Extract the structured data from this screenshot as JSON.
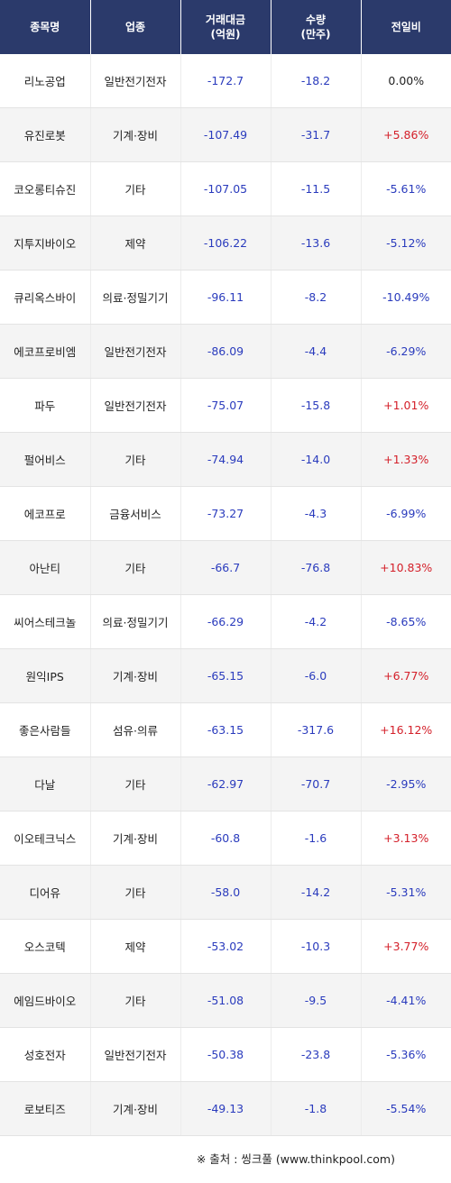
{
  "header": {
    "col1": "종목명",
    "col2": "업종",
    "col3_line1": "거래대금",
    "col3_line2": "(억원)",
    "col4_line1": "수량",
    "col4_line2": "(만주)",
    "col5": "전일비"
  },
  "rows": [
    {
      "name": "리노공업",
      "sector": "일반전기전자",
      "amount": "-172.7",
      "volume": "-18.2",
      "change": "0.00%",
      "change_color": "black"
    },
    {
      "name": "유진로봇",
      "sector": "기계·장비",
      "amount": "-107.49",
      "volume": "-31.7",
      "change": "+5.86%",
      "change_color": "red"
    },
    {
      "name": "코오롱티슈진",
      "sector": "기타",
      "amount": "-107.05",
      "volume": "-11.5",
      "change": "-5.61%",
      "change_color": "blue"
    },
    {
      "name": "지투지바이오",
      "sector": "제약",
      "amount": "-106.22",
      "volume": "-13.6",
      "change": "-5.12%",
      "change_color": "blue"
    },
    {
      "name": "큐리옥스바이",
      "sector": "의료·정밀기기",
      "amount": "-96.11",
      "volume": "-8.2",
      "change": "-10.49%",
      "change_color": "blue"
    },
    {
      "name": "에코프로비엠",
      "sector": "일반전기전자",
      "amount": "-86.09",
      "volume": "-4.4",
      "change": "-6.29%",
      "change_color": "blue"
    },
    {
      "name": "파두",
      "sector": "일반전기전자",
      "amount": "-75.07",
      "volume": "-15.8",
      "change": "+1.01%",
      "change_color": "red"
    },
    {
      "name": "펄어비스",
      "sector": "기타",
      "amount": "-74.94",
      "volume": "-14.0",
      "change": "+1.33%",
      "change_color": "red"
    },
    {
      "name": "에코프로",
      "sector": "금융서비스",
      "amount": "-73.27",
      "volume": "-4.3",
      "change": "-6.99%",
      "change_color": "blue"
    },
    {
      "name": "아난티",
      "sector": "기타",
      "amount": "-66.7",
      "volume": "-76.8",
      "change": "+10.83%",
      "change_color": "red"
    },
    {
      "name": "씨어스테크놀",
      "sector": "의료·정밀기기",
      "amount": "-66.29",
      "volume": "-4.2",
      "change": "-8.65%",
      "change_color": "blue"
    },
    {
      "name": "원익IPS",
      "sector": "기계·장비",
      "amount": "-65.15",
      "volume": "-6.0",
      "change": "+6.77%",
      "change_color": "red"
    },
    {
      "name": "좋은사람들",
      "sector": "섬유·의류",
      "amount": "-63.15",
      "volume": "-317.6",
      "change": "+16.12%",
      "change_color": "red"
    },
    {
      "name": "다날",
      "sector": "기타",
      "amount": "-62.97",
      "volume": "-70.7",
      "change": "-2.95%",
      "change_color": "blue"
    },
    {
      "name": "이오테크닉스",
      "sector": "기계·장비",
      "amount": "-60.8",
      "volume": "-1.6",
      "change": "+3.13%",
      "change_color": "red"
    },
    {
      "name": "디어유",
      "sector": "기타",
      "amount": "-58.0",
      "volume": "-14.2",
      "change": "-5.31%",
      "change_color": "blue"
    },
    {
      "name": "오스코텍",
      "sector": "제약",
      "amount": "-53.02",
      "volume": "-10.3",
      "change": "+3.77%",
      "change_color": "red"
    },
    {
      "name": "에임드바이오",
      "sector": "기타",
      "amount": "-51.08",
      "volume": "-9.5",
      "change": "-4.41%",
      "change_color": "blue"
    },
    {
      "name": "성호전자",
      "sector": "일반전기전자",
      "amount": "-50.38",
      "volume": "-23.8",
      "change": "-5.36%",
      "change_color": "blue"
    },
    {
      "name": "로보티즈",
      "sector": "기계·장비",
      "amount": "-49.13",
      "volume": "-1.8",
      "change": "-5.54%",
      "change_color": "blue"
    }
  ],
  "colors": {
    "header_bg": "#2b3a6b",
    "negative": "#2a3bbd",
    "positive": "#d4202a",
    "neutral": "#222222"
  },
  "source": "※ 출처 : 씽크풀 (www.thinkpool.com)"
}
